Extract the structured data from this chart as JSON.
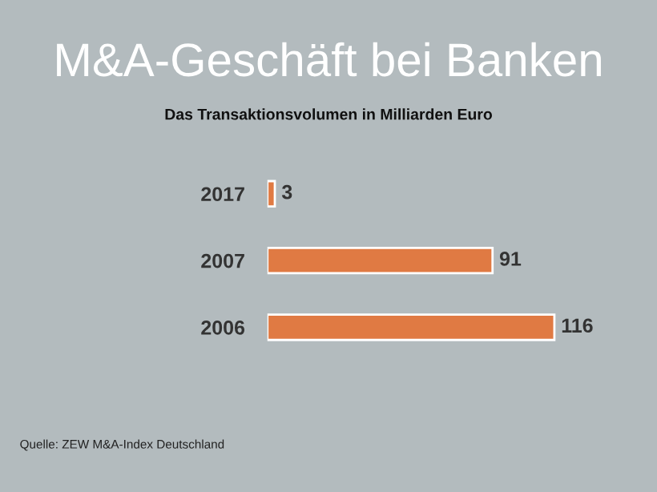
{
  "chart_data": {
    "type": "bar",
    "orientation": "horizontal",
    "title": "M&A-Geschäft bei Banken",
    "subtitle": "Das Transaktionsvolumen in Milliarden Euro",
    "categories": [
      "2017",
      "2007",
      "2006"
    ],
    "values": [
      3,
      91,
      116
    ],
    "color": "#e07a43",
    "data_labels": true,
    "annotations": [
      "Quelle: ZEW M&A-Index Deutschland"
    ]
  }
}
